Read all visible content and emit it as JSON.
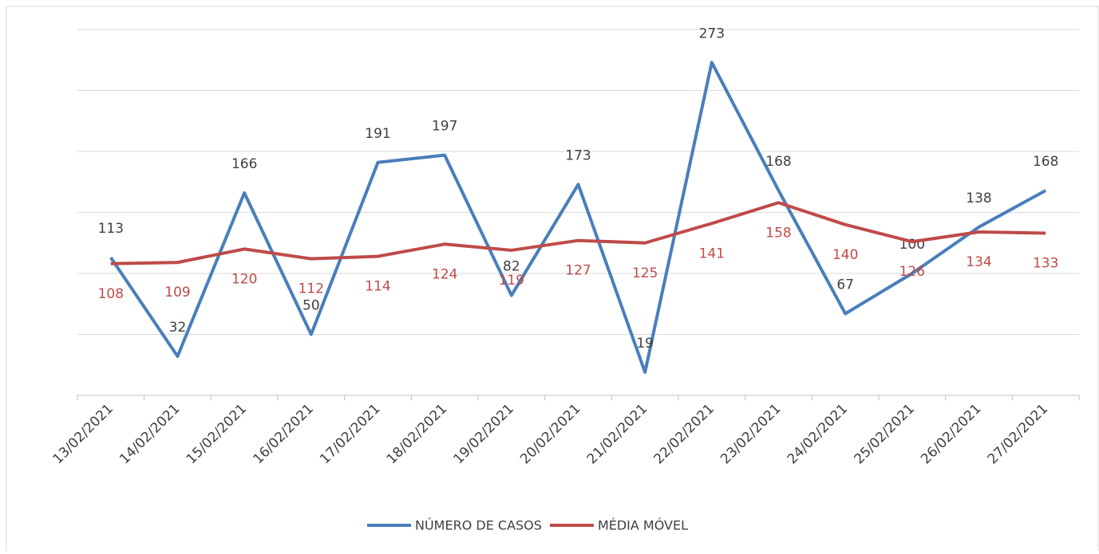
{
  "chart_data": {
    "type": "line",
    "categories": [
      "13/02/2021",
      "14/02/2021",
      "15/02/2021",
      "16/02/2021",
      "17/02/2021",
      "18/02/2021",
      "19/02/2021",
      "20/02/2021",
      "21/02/2021",
      "22/02/2021",
      "23/02/2021",
      "24/02/2021",
      "25/02/2021",
      "26/02/2021",
      "27/02/2021"
    ],
    "series": [
      {
        "name": "NÚMERO DE CASOS",
        "color": "#4a7ebb",
        "values": [
          113,
          32,
          166,
          50,
          191,
          197,
          82,
          173,
          19,
          273,
          168,
          67,
          100,
          138,
          168
        ]
      },
      {
        "name": "MÉDIA MÓVEL",
        "color": "#be4b48",
        "values": [
          108,
          109,
          120,
          112,
          114,
          124,
          119,
          127,
          125,
          141,
          158,
          140,
          126,
          134,
          133
        ]
      }
    ],
    "ylim": [
      0,
      300
    ],
    "yticks": [
      0,
      50,
      100,
      150,
      200,
      250,
      300
    ],
    "grid": true,
    "legend": "bottom"
  }
}
